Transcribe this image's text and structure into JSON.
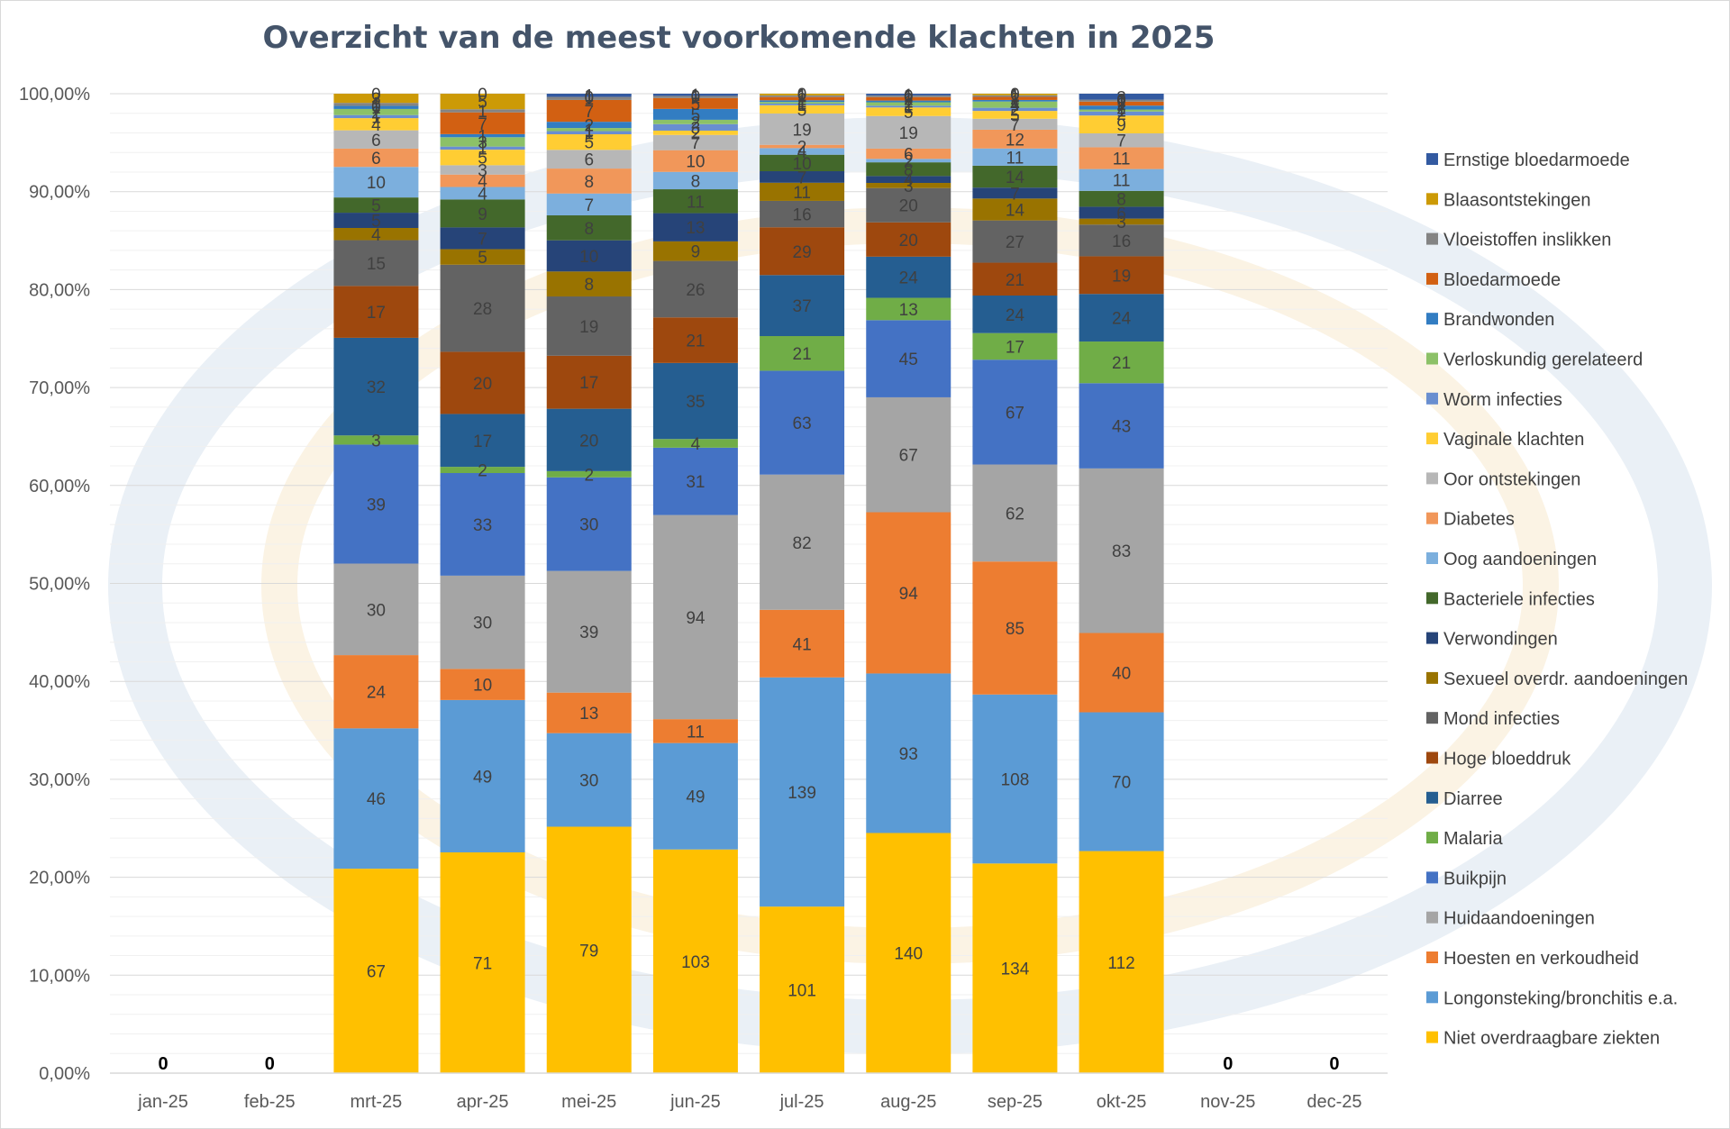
{
  "chart_data": {
    "type": "bar",
    "stacked": "percent",
    "title": "Overzicht van de meest voorkomende klachten in 2025",
    "xlabel": "",
    "ylabel": "",
    "ylim": [
      0,
      100
    ],
    "y_tick_labels": [
      "0,00%",
      "10,00%",
      "20,00%",
      "30,00%",
      "40,00%",
      "50,00%",
      "60,00%",
      "70,00%",
      "80,00%",
      "90,00%",
      "100,00%"
    ],
    "categories": [
      "jan-25",
      "feb-25",
      "mrt-25",
      "apr-25",
      "mei-25",
      "jun-25",
      "jul-25",
      "aug-25",
      "sep-25",
      "okt-25",
      "nov-25",
      "dec-25"
    ],
    "empty_month_label": "0",
    "legend_position": "right",
    "grid": true,
    "series": [
      {
        "name": "Niet overdraagbare ziekten",
        "color": "#FFC000",
        "values": [
          0,
          0,
          67,
          71,
          79,
          103,
          101,
          140,
          134,
          112,
          0,
          0
        ]
      },
      {
        "name": "Longonsteking/bronchitis e.a.",
        "color": "#5B9BD5",
        "values": [
          0,
          0,
          46,
          49,
          30,
          49,
          139,
          93,
          108,
          70,
          0,
          0
        ]
      },
      {
        "name": "Hoesten en verkoudheid",
        "color": "#ED7D31",
        "values": [
          0,
          0,
          24,
          10,
          13,
          11,
          41,
          94,
          85,
          40,
          0,
          0
        ]
      },
      {
        "name": "Huidaandoeningen",
        "color": "#A5A5A5",
        "values": [
          0,
          0,
          30,
          30,
          39,
          94,
          82,
          67,
          62,
          83,
          0,
          0
        ]
      },
      {
        "name": "Buikpijn",
        "color": "#4472C4",
        "values": [
          0,
          0,
          39,
          33,
          30,
          31,
          63,
          45,
          67,
          43,
          0,
          0
        ]
      },
      {
        "name": "Malaria",
        "color": "#70AD47",
        "values": [
          0,
          0,
          3,
          2,
          2,
          4,
          21,
          13,
          17,
          21,
          0,
          0
        ]
      },
      {
        "name": "Diarree",
        "color": "#255E91",
        "values": [
          0,
          0,
          32,
          17,
          20,
          35,
          37,
          24,
          24,
          24,
          0,
          0
        ]
      },
      {
        "name": "Hoge bloeddruk",
        "color": "#9E480E",
        "values": [
          0,
          0,
          17,
          20,
          17,
          21,
          29,
          20,
          21,
          19,
          0,
          0
        ]
      },
      {
        "name": "Mond infecties",
        "color": "#636363",
        "values": [
          0,
          0,
          15,
          28,
          19,
          26,
          16,
          20,
          27,
          16,
          0,
          0
        ]
      },
      {
        "name": "Sexueel overdr. aandoeningen",
        "color": "#997300",
        "values": [
          0,
          0,
          4,
          5,
          8,
          9,
          11,
          3,
          14,
          3,
          0,
          0
        ]
      },
      {
        "name": "Verwondingen",
        "color": "#264478",
        "values": [
          0,
          0,
          5,
          7,
          10,
          13,
          7,
          4,
          7,
          6,
          0,
          0
        ]
      },
      {
        "name": "Bacteriele infecties",
        "color": "#43682B",
        "values": [
          0,
          0,
          5,
          9,
          8,
          11,
          10,
          8,
          14,
          8,
          0,
          0
        ]
      },
      {
        "name": "Oog aandoeningen",
        "color": "#7CAFDD",
        "values": [
          0,
          0,
          10,
          4,
          7,
          8,
          4,
          2,
          11,
          11,
          0,
          0
        ]
      },
      {
        "name": "Diabetes",
        "color": "#F1975A",
        "values": [
          0,
          0,
          6,
          4,
          8,
          10,
          2,
          6,
          12,
          11,
          0,
          0
        ]
      },
      {
        "name": "Oor ontstekingen",
        "color": "#B7B7B7",
        "values": [
          0,
          0,
          6,
          3,
          6,
          7,
          19,
          19,
          7,
          7,
          0,
          0
        ]
      },
      {
        "name": "Vaginale klachten",
        "color": "#FFCD33",
        "values": [
          0,
          0,
          4,
          5,
          5,
          2,
          5,
          5,
          5,
          9,
          0,
          0
        ]
      },
      {
        "name": "Worm infecties",
        "color": "#698ED0",
        "values": [
          0,
          0,
          1,
          1,
          1,
          3,
          1,
          1,
          2,
          2,
          0,
          0
        ]
      },
      {
        "name": "Verloskundig gerelateerd",
        "color": "#8CC168",
        "values": [
          0,
          0,
          2,
          3,
          1,
          2,
          1,
          2,
          4,
          1,
          0,
          0
        ]
      },
      {
        "name": "Brandwonden",
        "color": "#327DC2",
        "values": [
          0,
          0,
          1,
          1,
          2,
          5,
          1,
          1,
          1,
          2,
          0,
          0
        ]
      },
      {
        "name": "Bloedarmoede",
        "color": "#D26012",
        "values": [
          0,
          0,
          0,
          7,
          7,
          5,
          2,
          2,
          2,
          2,
          0,
          0
        ]
      },
      {
        "name": "Vloeistoffen inslikken",
        "color": "#848484",
        "values": [
          0,
          0,
          1,
          1,
          1,
          1,
          1,
          1,
          1,
          1,
          0,
          0
        ]
      },
      {
        "name": "Blaasontstekingen",
        "color": "#CC9A06",
        "values": [
          0,
          0,
          3,
          5,
          0,
          0,
          1,
          0,
          1,
          0,
          0,
          0
        ]
      },
      {
        "name": "Ernstige bloedarmoede",
        "color": "#335AA1",
        "values": [
          0,
          0,
          0,
          0,
          1,
          1,
          0,
          1,
          0,
          3,
          0,
          0
        ]
      }
    ]
  }
}
